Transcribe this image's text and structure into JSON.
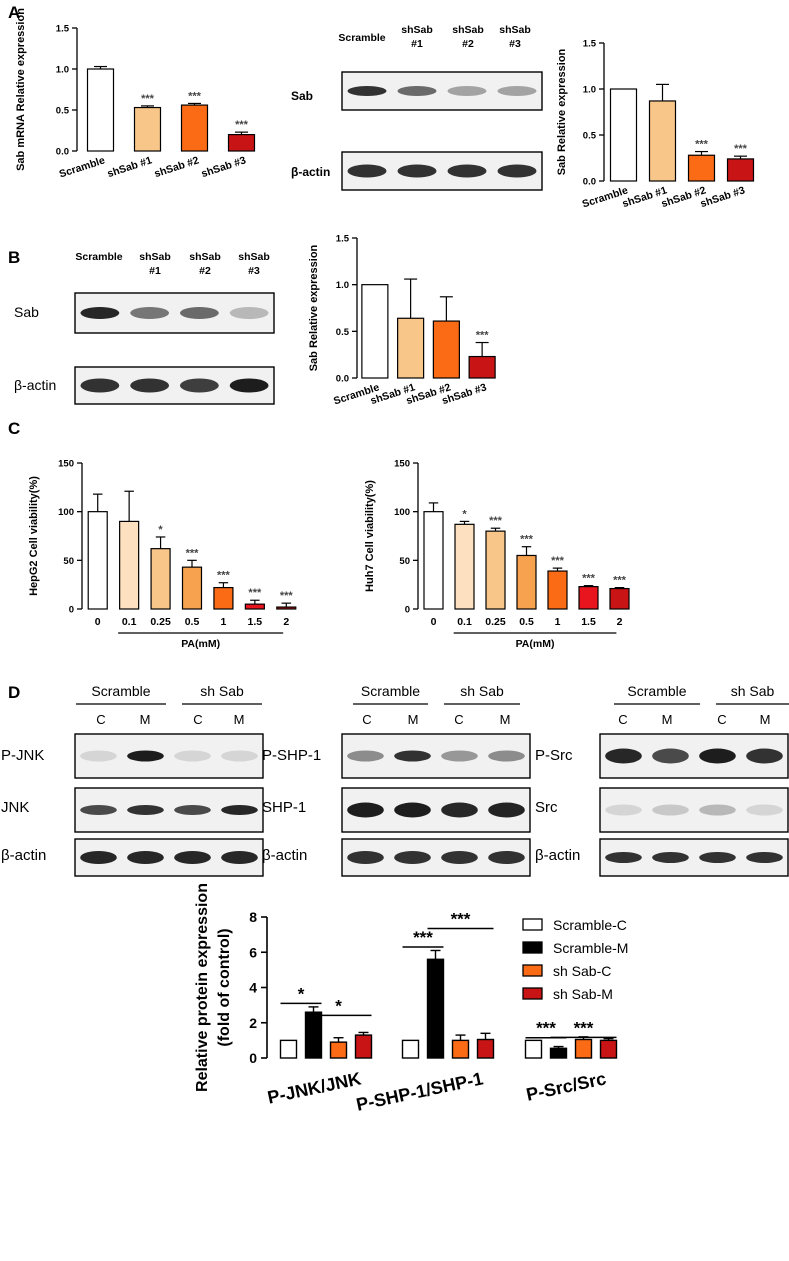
{
  "panel_labels": [
    "A",
    "B",
    "C",
    "D"
  ],
  "significance": {
    "p05": "*",
    "p001": "***"
  },
  "colors": {
    "white": "#ffffff",
    "light_orange": "#f9c68a",
    "orange": "#fb6a14",
    "red": "#c81414",
    "pale_orange": "#fde0c0",
    "mid_orange": "#f7a24e",
    "red_bright": "#e8141e",
    "black": "#000000",
    "asterisk_gray": "#444444"
  },
  "blot_labels": {
    "a_lanes": [
      "Scramble",
      "shSab #1",
      "shSab #2",
      "shSab #3"
    ],
    "a_rows": [
      "Sab",
      "β-actin"
    ],
    "b_lanes": [
      "Scramble",
      "shSab #1",
      "shSab #2",
      "shSab #3"
    ],
    "b_rows": [
      "Sab",
      "β-actin"
    ],
    "d_groups": [
      "Scramble",
      "sh Sab"
    ],
    "d_lanes": [
      "C",
      "M",
      "C",
      "M"
    ],
    "d_blot1_rows": [
      "P-JNK",
      "JNK",
      "β-actin"
    ],
    "d_blot2_rows": [
      "P-SHP-1",
      "SHP-1",
      "β-actin"
    ],
    "d_blot3_rows": [
      "P-Src",
      "Src",
      "β-actin"
    ]
  },
  "chart_data": [
    {
      "id": "A-mRNA",
      "type": "bar",
      "ylabel": "Sab mRNA Relative expression",
      "categories": [
        "Scramble",
        "shSab #1",
        "shSab #2",
        "shSab #3"
      ],
      "values": [
        1.0,
        0.53,
        0.56,
        0.2
      ],
      "errors": [
        0.03,
        0.02,
        0.02,
        0.03
      ],
      "sig": [
        "",
        "***",
        "***",
        "***"
      ],
      "ylim": [
        0,
        1.5
      ],
      "yticks": [
        "0.0",
        "0.5",
        "1.0",
        "1.5"
      ]
    },
    {
      "id": "A-protein",
      "type": "bar",
      "ylabel": "Sab Relative expression",
      "categories": [
        "Scramble",
        "shSab #1",
        "shSab #2",
        "shSab #3"
      ],
      "values": [
        1.0,
        0.87,
        0.28,
        0.24
      ],
      "errors": [
        0,
        0.18,
        0.04,
        0.03
      ],
      "sig": [
        "",
        "",
        "***",
        "***"
      ],
      "ylim": [
        0,
        1.5
      ],
      "yticks": [
        "0.0",
        "0.5",
        "1.0",
        "1.5"
      ]
    },
    {
      "id": "B-protein",
      "type": "bar",
      "ylabel": "Sab Relative expression",
      "categories": [
        "Scramble",
        "shSab #1",
        "shSab #2",
        "shSab #3"
      ],
      "values": [
        1.0,
        0.64,
        0.61,
        0.23
      ],
      "errors": [
        0,
        0.42,
        0.26,
        0.15
      ],
      "sig": [
        "",
        "",
        "",
        "***"
      ],
      "ylim": [
        0,
        1.5
      ],
      "yticks": [
        "0.0",
        "0.5",
        "1.0",
        "1.5"
      ]
    },
    {
      "id": "C-HepG2",
      "type": "bar",
      "ylabel": "HepG2 Cell viability(%)",
      "xlabel": "PA(mM)",
      "categories": [
        "0",
        "0.1",
        "0.25",
        "0.5",
        "1",
        "1.5",
        "2"
      ],
      "values": [
        100,
        90,
        62,
        43,
        22,
        5,
        2
      ],
      "errors": [
        18,
        31,
        12,
        7,
        5,
        4,
        4
      ],
      "sig": [
        "",
        "",
        "*",
        "***",
        "***",
        "***",
        "***"
      ],
      "ylim": [
        0,
        150
      ],
      "yticks": [
        "0",
        "50",
        "100",
        "150"
      ]
    },
    {
      "id": "C-Huh7",
      "type": "bar",
      "ylabel": "Huh7 Cell viability(%)",
      "xlabel": "PA(mM)",
      "categories": [
        "0",
        "0.1",
        "0.25",
        "0.5",
        "1",
        "1.5",
        "2"
      ],
      "values": [
        100,
        87,
        80,
        55,
        39,
        23,
        21
      ],
      "errors": [
        9,
        3,
        3,
        9,
        3,
        1,
        1
      ],
      "sig": [
        "",
        "*",
        "***",
        "***",
        "***",
        "***",
        "***"
      ],
      "ylim": [
        0,
        150
      ],
      "yticks": [
        "0",
        "50",
        "100",
        "150"
      ]
    },
    {
      "id": "D-protein",
      "type": "bar",
      "ylabel": "Relative protein expression (fold of control)",
      "ylabel_lines": [
        "Relative protein expression",
        "(fold of control)"
      ],
      "categories": [
        "P-JNK/JNK",
        "P-SHP-1/SHP-1",
        "P-Src/Src"
      ],
      "series": [
        {
          "name": "Scramble-C",
          "values": [
            1.0,
            1.0,
            1.0
          ],
          "errors": [
            0,
            0,
            0
          ]
        },
        {
          "name": "Scramble-M",
          "values": [
            2.6,
            5.6,
            0.55
          ],
          "errors": [
            0.3,
            0.5,
            0.1
          ]
        },
        {
          "name": "sh Sab-C",
          "values": [
            0.9,
            1.0,
            1.05
          ],
          "errors": [
            0.25,
            0.3,
            0.15
          ]
        },
        {
          "name": "sh Sab-M",
          "values": [
            1.3,
            1.05,
            1.0
          ],
          "errors": [
            0.15,
            0.35,
            0.1
          ]
        }
      ],
      "comparisons": [
        {
          "category": 0,
          "from": 0,
          "to": 1,
          "label": "*"
        },
        {
          "category": 0,
          "from": 1,
          "to": 3,
          "label": "*"
        },
        {
          "category": 1,
          "from": 0,
          "to": 1,
          "label": "***"
        },
        {
          "category": 1,
          "from": 1,
          "to": 3,
          "label": "***"
        },
        {
          "category": 2,
          "from": 0,
          "to": 1,
          "label": "***"
        },
        {
          "category": 2,
          "from": 1,
          "to": 3,
          "label": "***"
        }
      ],
      "ylim": [
        0,
        8
      ],
      "yticks": [
        "0",
        "2",
        "4",
        "6",
        "8"
      ],
      "legend": "top-right"
    }
  ]
}
